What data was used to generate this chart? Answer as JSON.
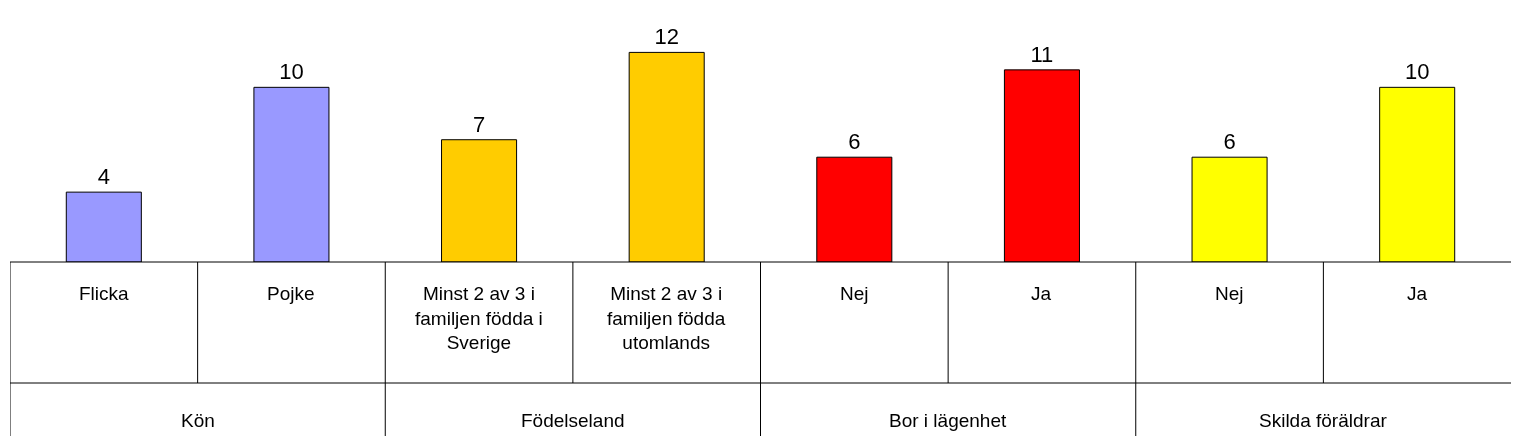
{
  "chart_data": {
    "type": "bar",
    "categories": [
      "Flicka",
      "Pojke",
      "Minst 2 av 3 i familjen födda i Sverige",
      "Minst 2 av 3 i familjen födda utomlands",
      "Nej",
      "Ja",
      "Nej",
      "Ja"
    ],
    "values": [
      4,
      10,
      7,
      12,
      6,
      11,
      6,
      10
    ],
    "colors": [
      "#9999ff",
      "#9999ff",
      "#ffcc00",
      "#ffcc00",
      "#ff0000",
      "#ff0000",
      "#ffff00",
      "#ffff00"
    ],
    "annotations": [
      "Kön",
      "Födelseland",
      "Bor i lägenhet",
      "Skilda föräldrar"
    ],
    "data_labels": true
  }
}
